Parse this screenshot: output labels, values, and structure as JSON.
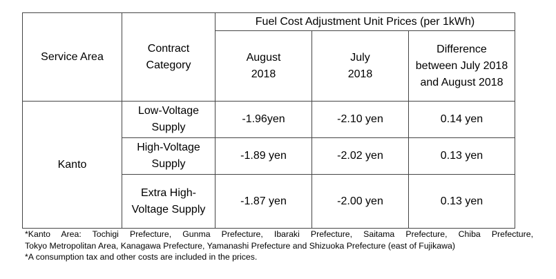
{
  "table": {
    "header": {
      "service_area": "Service Area",
      "contract_category": "Contract Category",
      "group_title": "Fuel Cost Adjustment Unit Prices (per 1kWh)",
      "col_august": "August 2018",
      "col_july": "July 2018",
      "col_difference": "Difference between July 2018 and August 2018"
    },
    "area": "Kanto",
    "rows": [
      {
        "category": "Low-Voltage Supply",
        "august": "-1.96yen",
        "july": "-2.10 yen",
        "difference": "0.14 yen"
      },
      {
        "category": "High-Voltage Supply",
        "august": "-1.89 yen",
        "july": "-2.02 yen",
        "difference": "0.13 yen"
      },
      {
        "category": "Extra High-Voltage Supply",
        "august": "-1.87 yen",
        "july": "-2.00 yen",
        "difference": "0.13 yen"
      }
    ]
  },
  "notes": {
    "line1": "*Kanto Area: Tochigi Prefecture, Gunma Prefecture, Ibaraki Prefecture, Saitama Prefecture, Chiba Prefecture,",
    "line2": "Tokyo Metropolitan Area, Kanagawa Prefecture, Yamanashi Prefecture and Shizuoka Prefecture (east of Fujikawa)",
    "line3": "*A consumption tax and other costs are included in the prices."
  }
}
